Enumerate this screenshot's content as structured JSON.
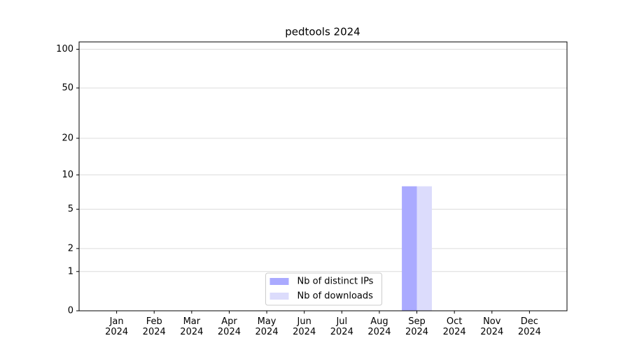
{
  "chart_data": {
    "type": "bar",
    "title": "pedtools 2024",
    "categories": [
      "Jan\n2024",
      "Feb\n2024",
      "Mar\n2024",
      "Apr\n2024",
      "May\n2024",
      "Jun\n2024",
      "Jul\n2024",
      "Aug\n2024",
      "Sep\n2024",
      "Oct\n2024",
      "Nov\n2024",
      "Dec\n2024"
    ],
    "series": [
      {
        "name": "Nb of distinct IPs",
        "color": "#aaaaff",
        "values": [
          0,
          0,
          0,
          0,
          0,
          0,
          0,
          0,
          8,
          0,
          0,
          0
        ]
      },
      {
        "name": "Nb of downloads",
        "color": "#dcdcfc",
        "values": [
          0,
          0,
          0,
          0,
          0,
          0,
          0,
          0,
          8,
          0,
          0,
          0
        ]
      }
    ],
    "yscale": "log1p",
    "ylim": [
      0,
      114
    ],
    "yticks": [
      0,
      1,
      2,
      5,
      10,
      20,
      50,
      100
    ],
    "grid": true,
    "legend": "lower center"
  }
}
